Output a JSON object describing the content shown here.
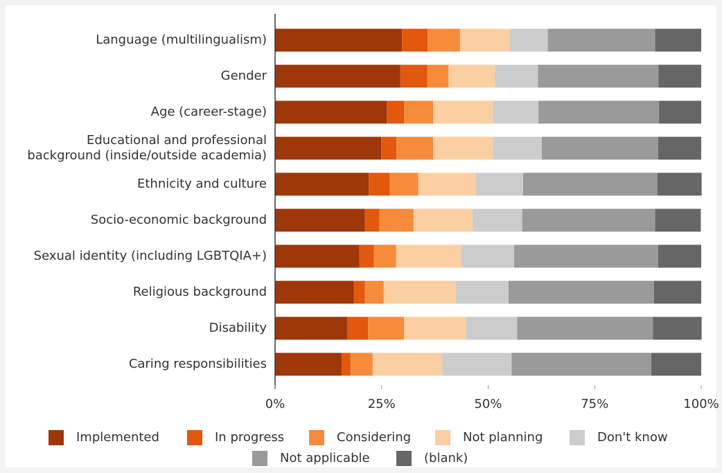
{
  "chart_data": {
    "type": "stacked_bar_horizontal",
    "categories": [
      "Language (multilingualism)",
      "Gender",
      "Age (career-stage)",
      "Educational and professional\nbackground (inside/outside academia)",
      "Ethnicity and culture",
      "Socio-economic background",
      "Sexual identity (including LGBTQIA+)",
      "Religious background",
      "Disability",
      "Caring responsibilities"
    ],
    "series": [
      {
        "name": "Implemented",
        "color": "#9e370a",
        "values": [
          29.8,
          29.4,
          26.2,
          24.9,
          22.0,
          21.1,
          19.8,
          18.5,
          16.9,
          15.6
        ]
      },
      {
        "name": "In progress",
        "color": "#e2580f",
        "values": [
          6.0,
          6.3,
          4.1,
          3.6,
          4.9,
          3.4,
          3.4,
          2.6,
          4.9,
          2.1
        ]
      },
      {
        "name": "Considering",
        "color": "#f78b3c",
        "values": [
          7.6,
          5.0,
          6.8,
          8.6,
          6.7,
          8.0,
          5.2,
          4.4,
          8.5,
          5.2
        ]
      },
      {
        "name": "Not planning",
        "color": "#fbcfa1",
        "values": [
          11.7,
          10.9,
          14.0,
          14.0,
          13.5,
          13.8,
          15.3,
          16.9,
          14.5,
          16.3
        ]
      },
      {
        "name": "Don't know",
        "color": "#cccccc",
        "values": [
          8.9,
          10.1,
          10.7,
          11.5,
          11.1,
          11.7,
          12.4,
          12.4,
          12.0,
          16.3
        ]
      },
      {
        "name": "Not applicable",
        "color": "#9a9a9a",
        "values": [
          25.2,
          28.3,
          28.3,
          27.3,
          31.5,
          31.2,
          33.8,
          34.1,
          31.9,
          32.8
        ]
      },
      {
        "name": "(blank)",
        "color": "#666666",
        "values": [
          10.8,
          10.0,
          9.9,
          10.1,
          10.4,
          10.7,
          10.1,
          11.1,
          11.4,
          11.7
        ]
      }
    ],
    "xlim": [
      0,
      100
    ],
    "xticks": [
      {
        "value": 0,
        "label": "0%"
      },
      {
        "value": 25,
        "label": "25%"
      },
      {
        "value": 50,
        "label": "50%"
      },
      {
        "value": 75,
        "label": "75%"
      },
      {
        "value": 100,
        "label": "100%"
      }
    ],
    "legend": "bottom"
  }
}
